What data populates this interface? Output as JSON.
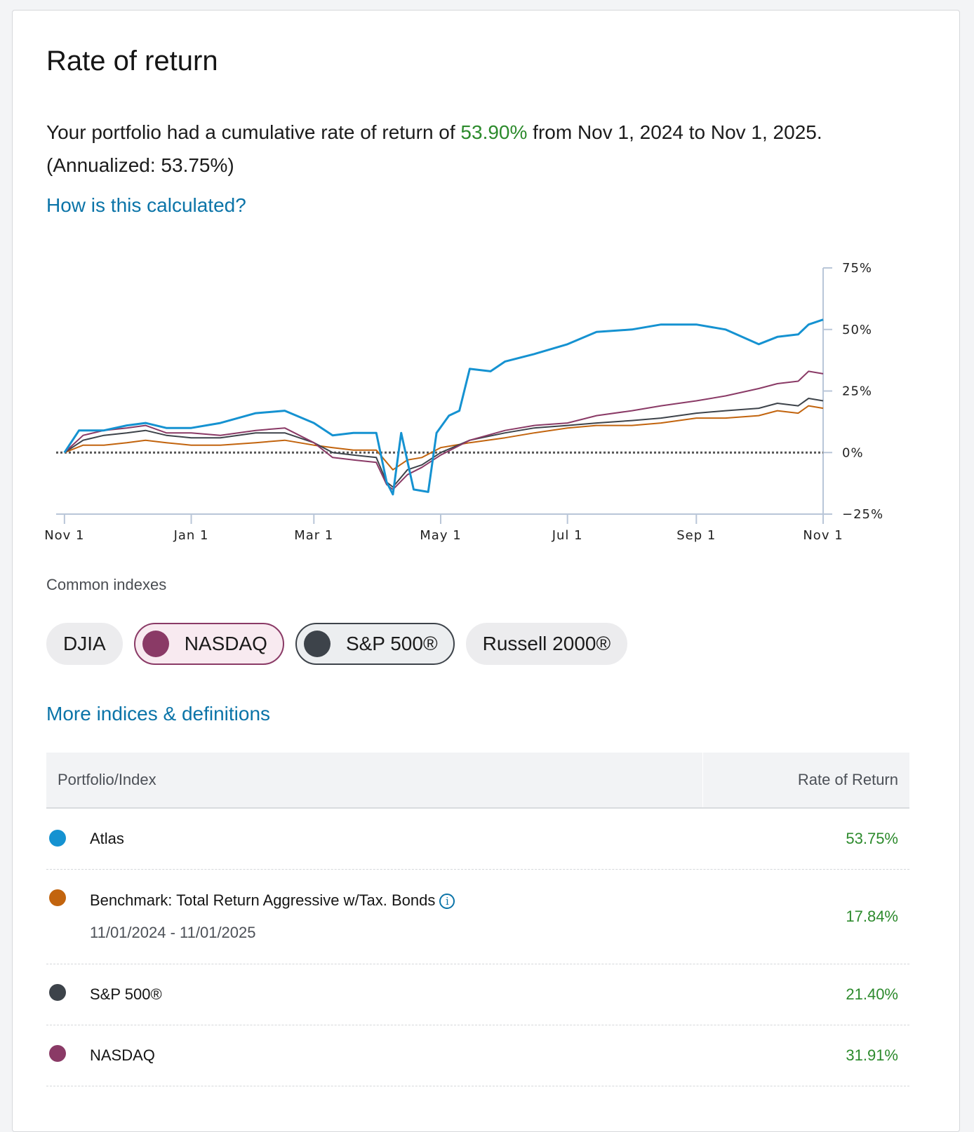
{
  "header": {
    "title": "Rate of return",
    "summary_prefix": "Your portfolio had a cumulative rate of return of ",
    "summary_value": "53.90%",
    "summary_suffix": " from Nov 1, 2024 to Nov 1, 2025. (Annualized: 53.75%)",
    "calc_link": "How is this calculated?"
  },
  "colors": {
    "atlas": "#1592d1",
    "benchmark": "#c2640e",
    "sp500": "#3d434a",
    "nasdaq": "#8a3a66",
    "positive": "#2c8a2c",
    "link": "#0b74a8"
  },
  "chart_data": {
    "type": "line",
    "x_ticks": [
      "Nov 1",
      "Jan 1",
      "Mar 1",
      "May 1",
      "Jul 1",
      "Sep 1",
      "Nov 1"
    ],
    "x_tick_dates": [
      "2024-11-01",
      "2025-01-01",
      "2025-03-01",
      "2025-05-01",
      "2025-07-01",
      "2025-09-01",
      "2025-11-01"
    ],
    "y_ticks": [
      "75%",
      "50%",
      "25%",
      "0%",
      "−25%"
    ],
    "y_tick_values": [
      75,
      50,
      25,
      0,
      -25
    ],
    "ylim": [
      -25,
      75
    ],
    "xlim": [
      "2024-10-28",
      "2025-11-01"
    ],
    "zero_line": "dotted",
    "series": [
      {
        "key": "benchmark",
        "color": "#c2640e",
        "x": [
          "2024-11-01",
          "2024-11-10",
          "2024-11-20",
          "2024-12-01",
          "2024-12-10",
          "2024-12-20",
          "2025-01-01",
          "2025-01-15",
          "2025-02-01",
          "2025-02-15",
          "2025-03-01",
          "2025-03-10",
          "2025-03-20",
          "2025-03-31",
          "2025-04-05",
          "2025-04-08",
          "2025-04-15",
          "2025-04-22",
          "2025-05-01",
          "2025-05-15",
          "2025-06-01",
          "2025-06-15",
          "2025-07-01",
          "2025-07-15",
          "2025-08-01",
          "2025-08-15",
          "2025-09-01",
          "2025-09-15",
          "2025-10-01",
          "2025-10-10",
          "2025-10-20",
          "2025-10-25",
          "2025-11-01"
        ],
        "y": [
          0,
          3,
          3,
          4,
          5,
          4,
          3,
          3,
          4,
          5,
          3,
          2,
          1,
          1,
          -4,
          -7,
          -3,
          -2,
          2,
          4,
          6,
          8,
          10,
          11,
          11,
          12,
          14,
          14,
          15,
          17,
          16,
          19,
          18
        ]
      },
      {
        "key": "sp500",
        "color": "#3d434a",
        "x": [
          "2024-11-01",
          "2024-11-10",
          "2024-11-20",
          "2024-12-01",
          "2024-12-10",
          "2024-12-20",
          "2025-01-01",
          "2025-01-15",
          "2025-02-01",
          "2025-02-15",
          "2025-03-01",
          "2025-03-10",
          "2025-03-20",
          "2025-03-31",
          "2025-04-05",
          "2025-04-08",
          "2025-04-15",
          "2025-04-22",
          "2025-05-01",
          "2025-05-15",
          "2025-06-01",
          "2025-06-15",
          "2025-07-01",
          "2025-07-15",
          "2025-08-01",
          "2025-08-15",
          "2025-09-01",
          "2025-09-15",
          "2025-10-01",
          "2025-10-10",
          "2025-10-20",
          "2025-10-25",
          "2025-11-01"
        ],
        "y": [
          0,
          5,
          7,
          8,
          9,
          7,
          6,
          6,
          8,
          8,
          4,
          0,
          -1,
          -2,
          -12,
          -14,
          -7,
          -5,
          0,
          5,
          8,
          10,
          11,
          12,
          13,
          14,
          16,
          17,
          18,
          20,
          19,
          22,
          21
        ]
      },
      {
        "key": "nasdaq",
        "color": "#8a3a66",
        "x": [
          "2024-11-01",
          "2024-11-10",
          "2024-11-20",
          "2024-12-01",
          "2024-12-10",
          "2024-12-20",
          "2025-01-01",
          "2025-01-15",
          "2025-02-01",
          "2025-02-15",
          "2025-03-01",
          "2025-03-10",
          "2025-03-20",
          "2025-03-31",
          "2025-04-05",
          "2025-04-08",
          "2025-04-15",
          "2025-04-22",
          "2025-05-01",
          "2025-05-15",
          "2025-06-01",
          "2025-06-15",
          "2025-07-01",
          "2025-07-15",
          "2025-08-01",
          "2025-08-15",
          "2025-09-01",
          "2025-09-15",
          "2025-10-01",
          "2025-10-10",
          "2025-10-20",
          "2025-10-25",
          "2025-11-01"
        ],
        "y": [
          0,
          7,
          9,
          10,
          11,
          8,
          8,
          7,
          9,
          10,
          4,
          -2,
          -3,
          -4,
          -13,
          -15,
          -9,
          -6,
          -1,
          5,
          9,
          11,
          12,
          15,
          17,
          19,
          21,
          23,
          26,
          28,
          29,
          33,
          32
        ]
      },
      {
        "key": "atlas",
        "color": "#1592d1",
        "x": [
          "2024-11-01",
          "2024-11-08",
          "2024-11-20",
          "2024-12-01",
          "2024-12-10",
          "2024-12-20",
          "2025-01-01",
          "2025-01-15",
          "2025-02-01",
          "2025-02-15",
          "2025-03-01",
          "2025-03-10",
          "2025-03-20",
          "2025-03-31",
          "2025-04-05",
          "2025-04-08",
          "2025-04-12",
          "2025-04-18",
          "2025-04-25",
          "2025-04-29",
          "2025-05-05",
          "2025-05-10",
          "2025-05-15",
          "2025-05-25",
          "2025-06-01",
          "2025-06-15",
          "2025-07-01",
          "2025-07-15",
          "2025-08-01",
          "2025-08-15",
          "2025-09-01",
          "2025-09-15",
          "2025-10-01",
          "2025-10-10",
          "2025-10-20",
          "2025-10-25",
          "2025-11-01"
        ],
        "y": [
          0,
          9,
          9,
          11,
          12,
          10,
          10,
          12,
          16,
          17,
          12,
          7,
          8,
          8,
          -12,
          -17,
          8,
          -15,
          -16,
          8,
          15,
          17,
          34,
          33,
          37,
          40,
          44,
          49,
          50,
          52,
          52,
          50,
          44,
          47,
          48,
          52,
          54
        ]
      }
    ]
  },
  "indexes": {
    "label": "Common indexes",
    "chips": [
      {
        "label": "DJIA",
        "selected": false
      },
      {
        "label": "NASDAQ",
        "selected": true,
        "color": "#8a3a66"
      },
      {
        "label": "S&P 500®",
        "selected": true,
        "color": "#3d434a"
      },
      {
        "label": "Russell 2000®",
        "selected": false
      }
    ],
    "more_link": "More indices & definitions"
  },
  "table": {
    "headers": {
      "name": "Portfolio/Index",
      "rate": "Rate of Return"
    },
    "rows": [
      {
        "name": "Atlas",
        "rate": "53.75%",
        "color": "#1592d1"
      },
      {
        "name": "Benchmark: Total Return Aggressive w/Tax. Bonds",
        "sub": "11/01/2024 - 11/01/2025",
        "rate": "17.84%",
        "color": "#c2640e",
        "info": "i"
      },
      {
        "name": "S&P 500®",
        "rate": "21.40%",
        "color": "#3d434a"
      },
      {
        "name": "NASDAQ",
        "rate": "31.91%",
        "color": "#8a3a66"
      }
    ]
  }
}
